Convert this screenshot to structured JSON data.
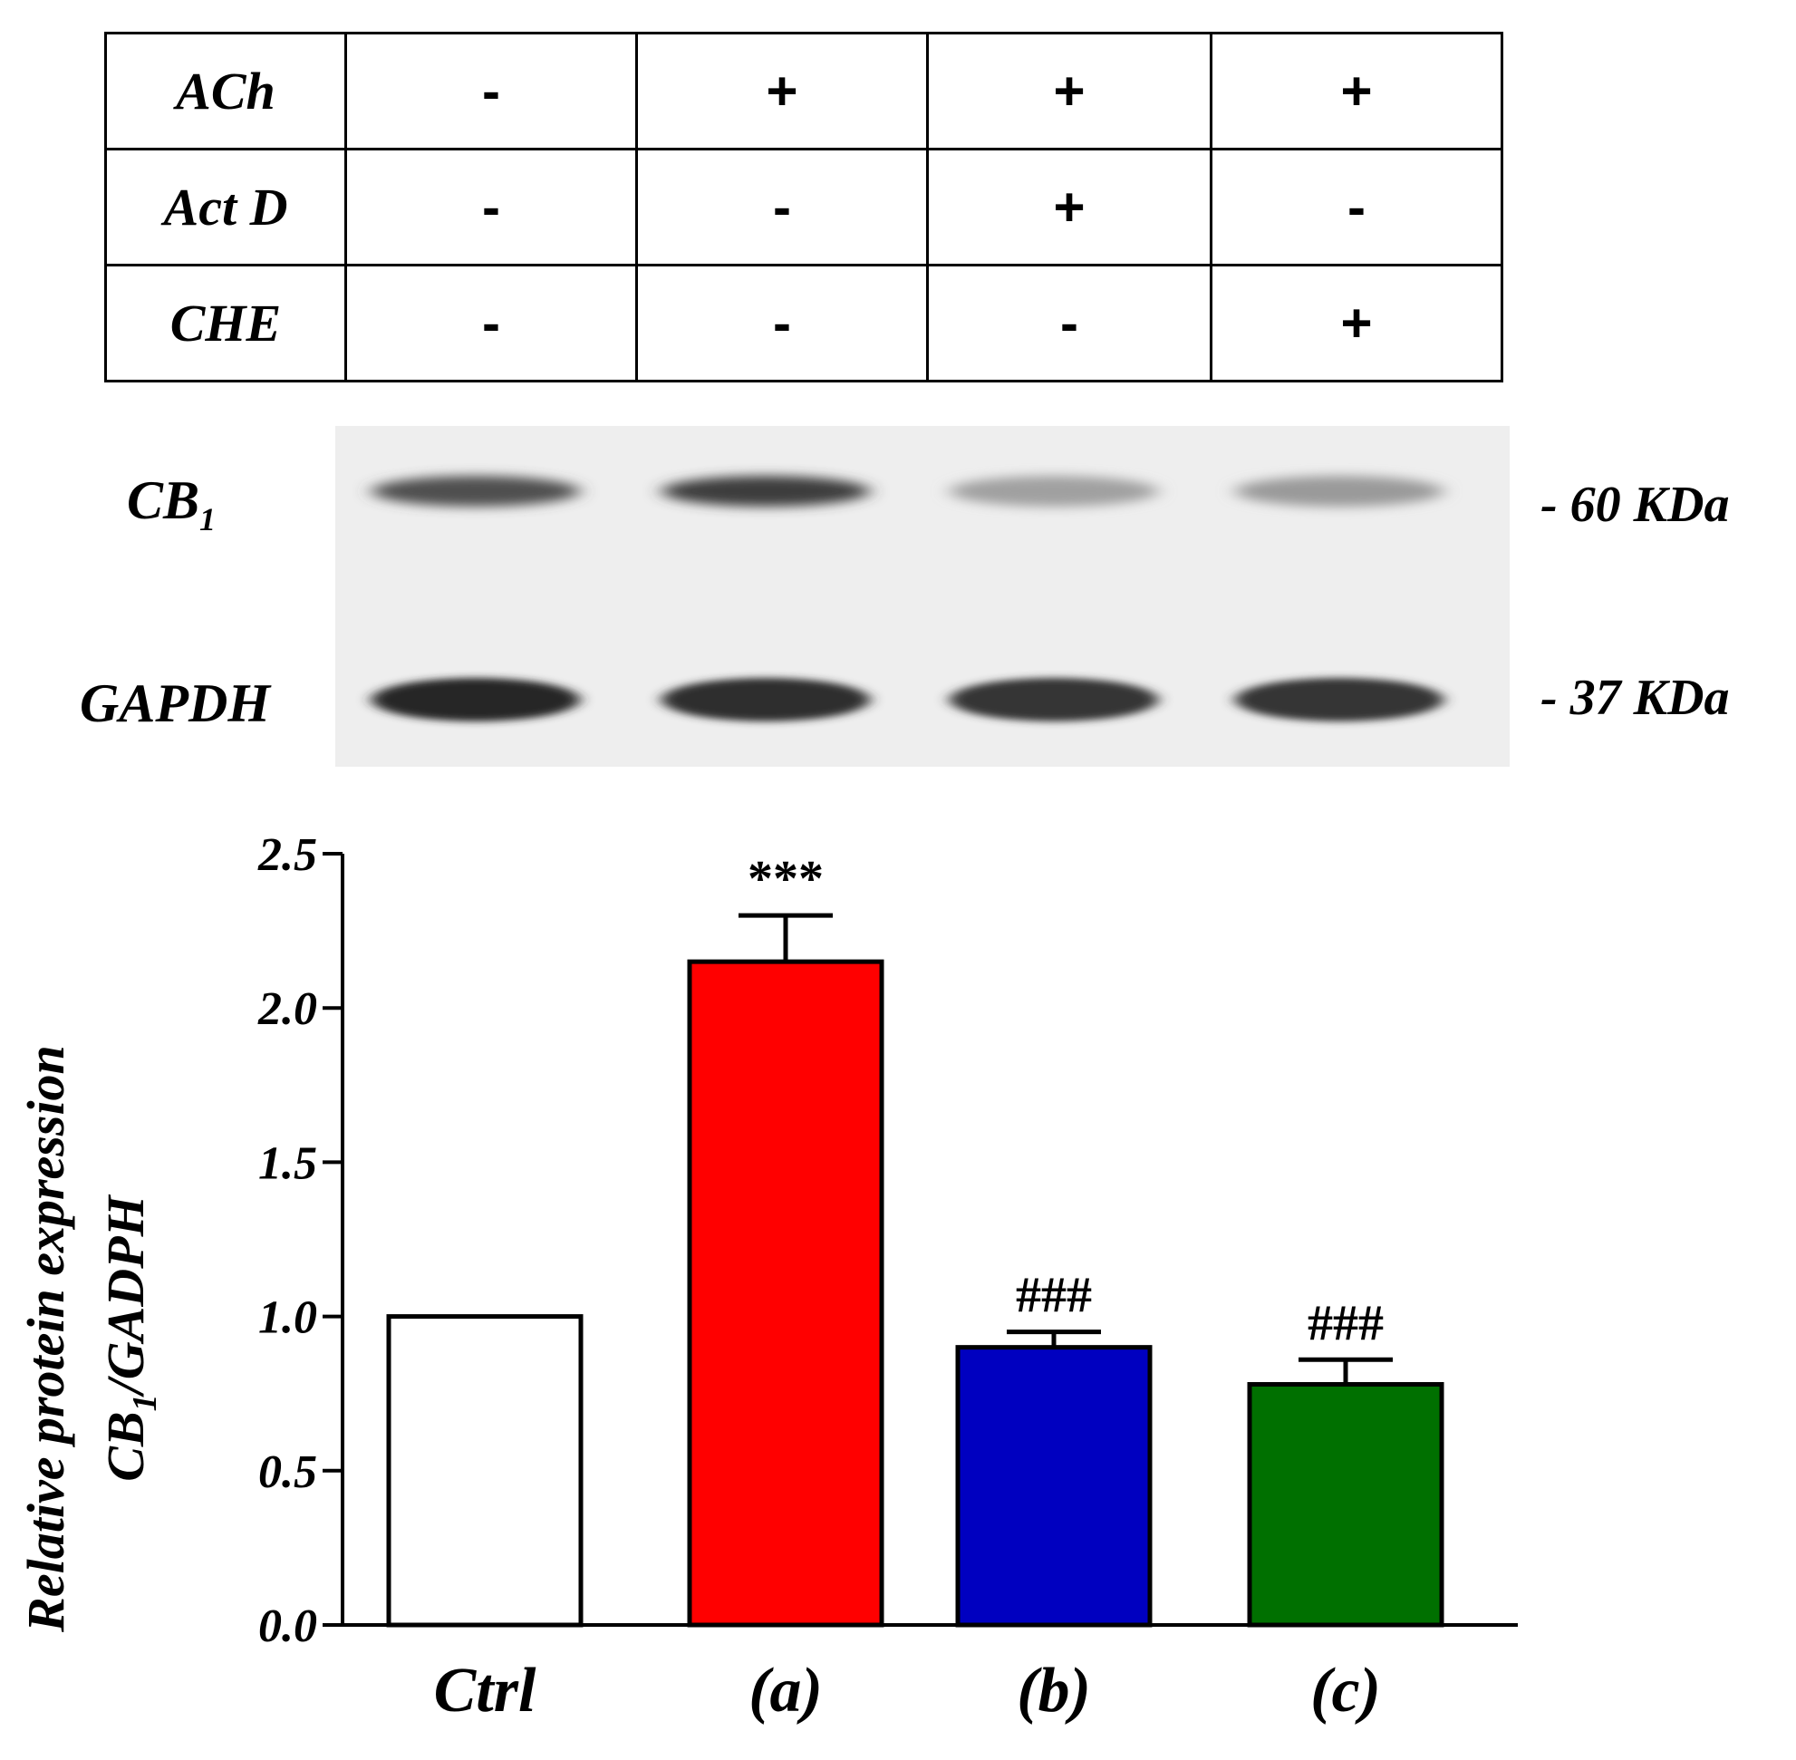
{
  "table": {
    "rows": [
      {
        "label": "ACh",
        "cells": [
          "-",
          "+",
          "+",
          "+"
        ]
      },
      {
        "label": "Act D",
        "cells": [
          "-",
          "-",
          "+",
          "-"
        ]
      },
      {
        "label": "CHE",
        "cells": [
          "-",
          "-",
          "-",
          "+"
        ]
      }
    ]
  },
  "blot": {
    "labels": {
      "cb1_main": "CB",
      "cb1_sub": "1",
      "gapdh": "GAPDH"
    },
    "mw": {
      "cb1": "- 60 KDa",
      "gapdh": "- 37 KDa"
    },
    "cb1_intensity": [
      0.75,
      0.85,
      0.35,
      0.38
    ],
    "gapdh_intensity": [
      0.95,
      0.92,
      0.88,
      0.88
    ]
  },
  "chart_data": {
    "type": "bar",
    "categories": [
      "Ctrl",
      "(a)",
      "(b)",
      "(c)"
    ],
    "values": [
      1.0,
      2.15,
      0.9,
      0.78
    ],
    "errors": [
      0,
      0.15,
      0.05,
      0.08
    ],
    "annotations": [
      "",
      "***",
      "###",
      "###"
    ],
    "colors": [
      "#ffffff",
      "#ff0000",
      "#0000c0",
      "#007000"
    ],
    "ylabel_line1": "Relative protein expression",
    "ylabel_line2_main": "CB",
    "ylabel_line2_sub": "1",
    "ylabel_line2_rest": "/GADPH",
    "ylim": [
      0,
      2.5
    ],
    "yticks": [
      "0.0",
      "0.5",
      "1.0",
      "1.5",
      "2.0",
      "2.5"
    ],
    "grid": false
  }
}
